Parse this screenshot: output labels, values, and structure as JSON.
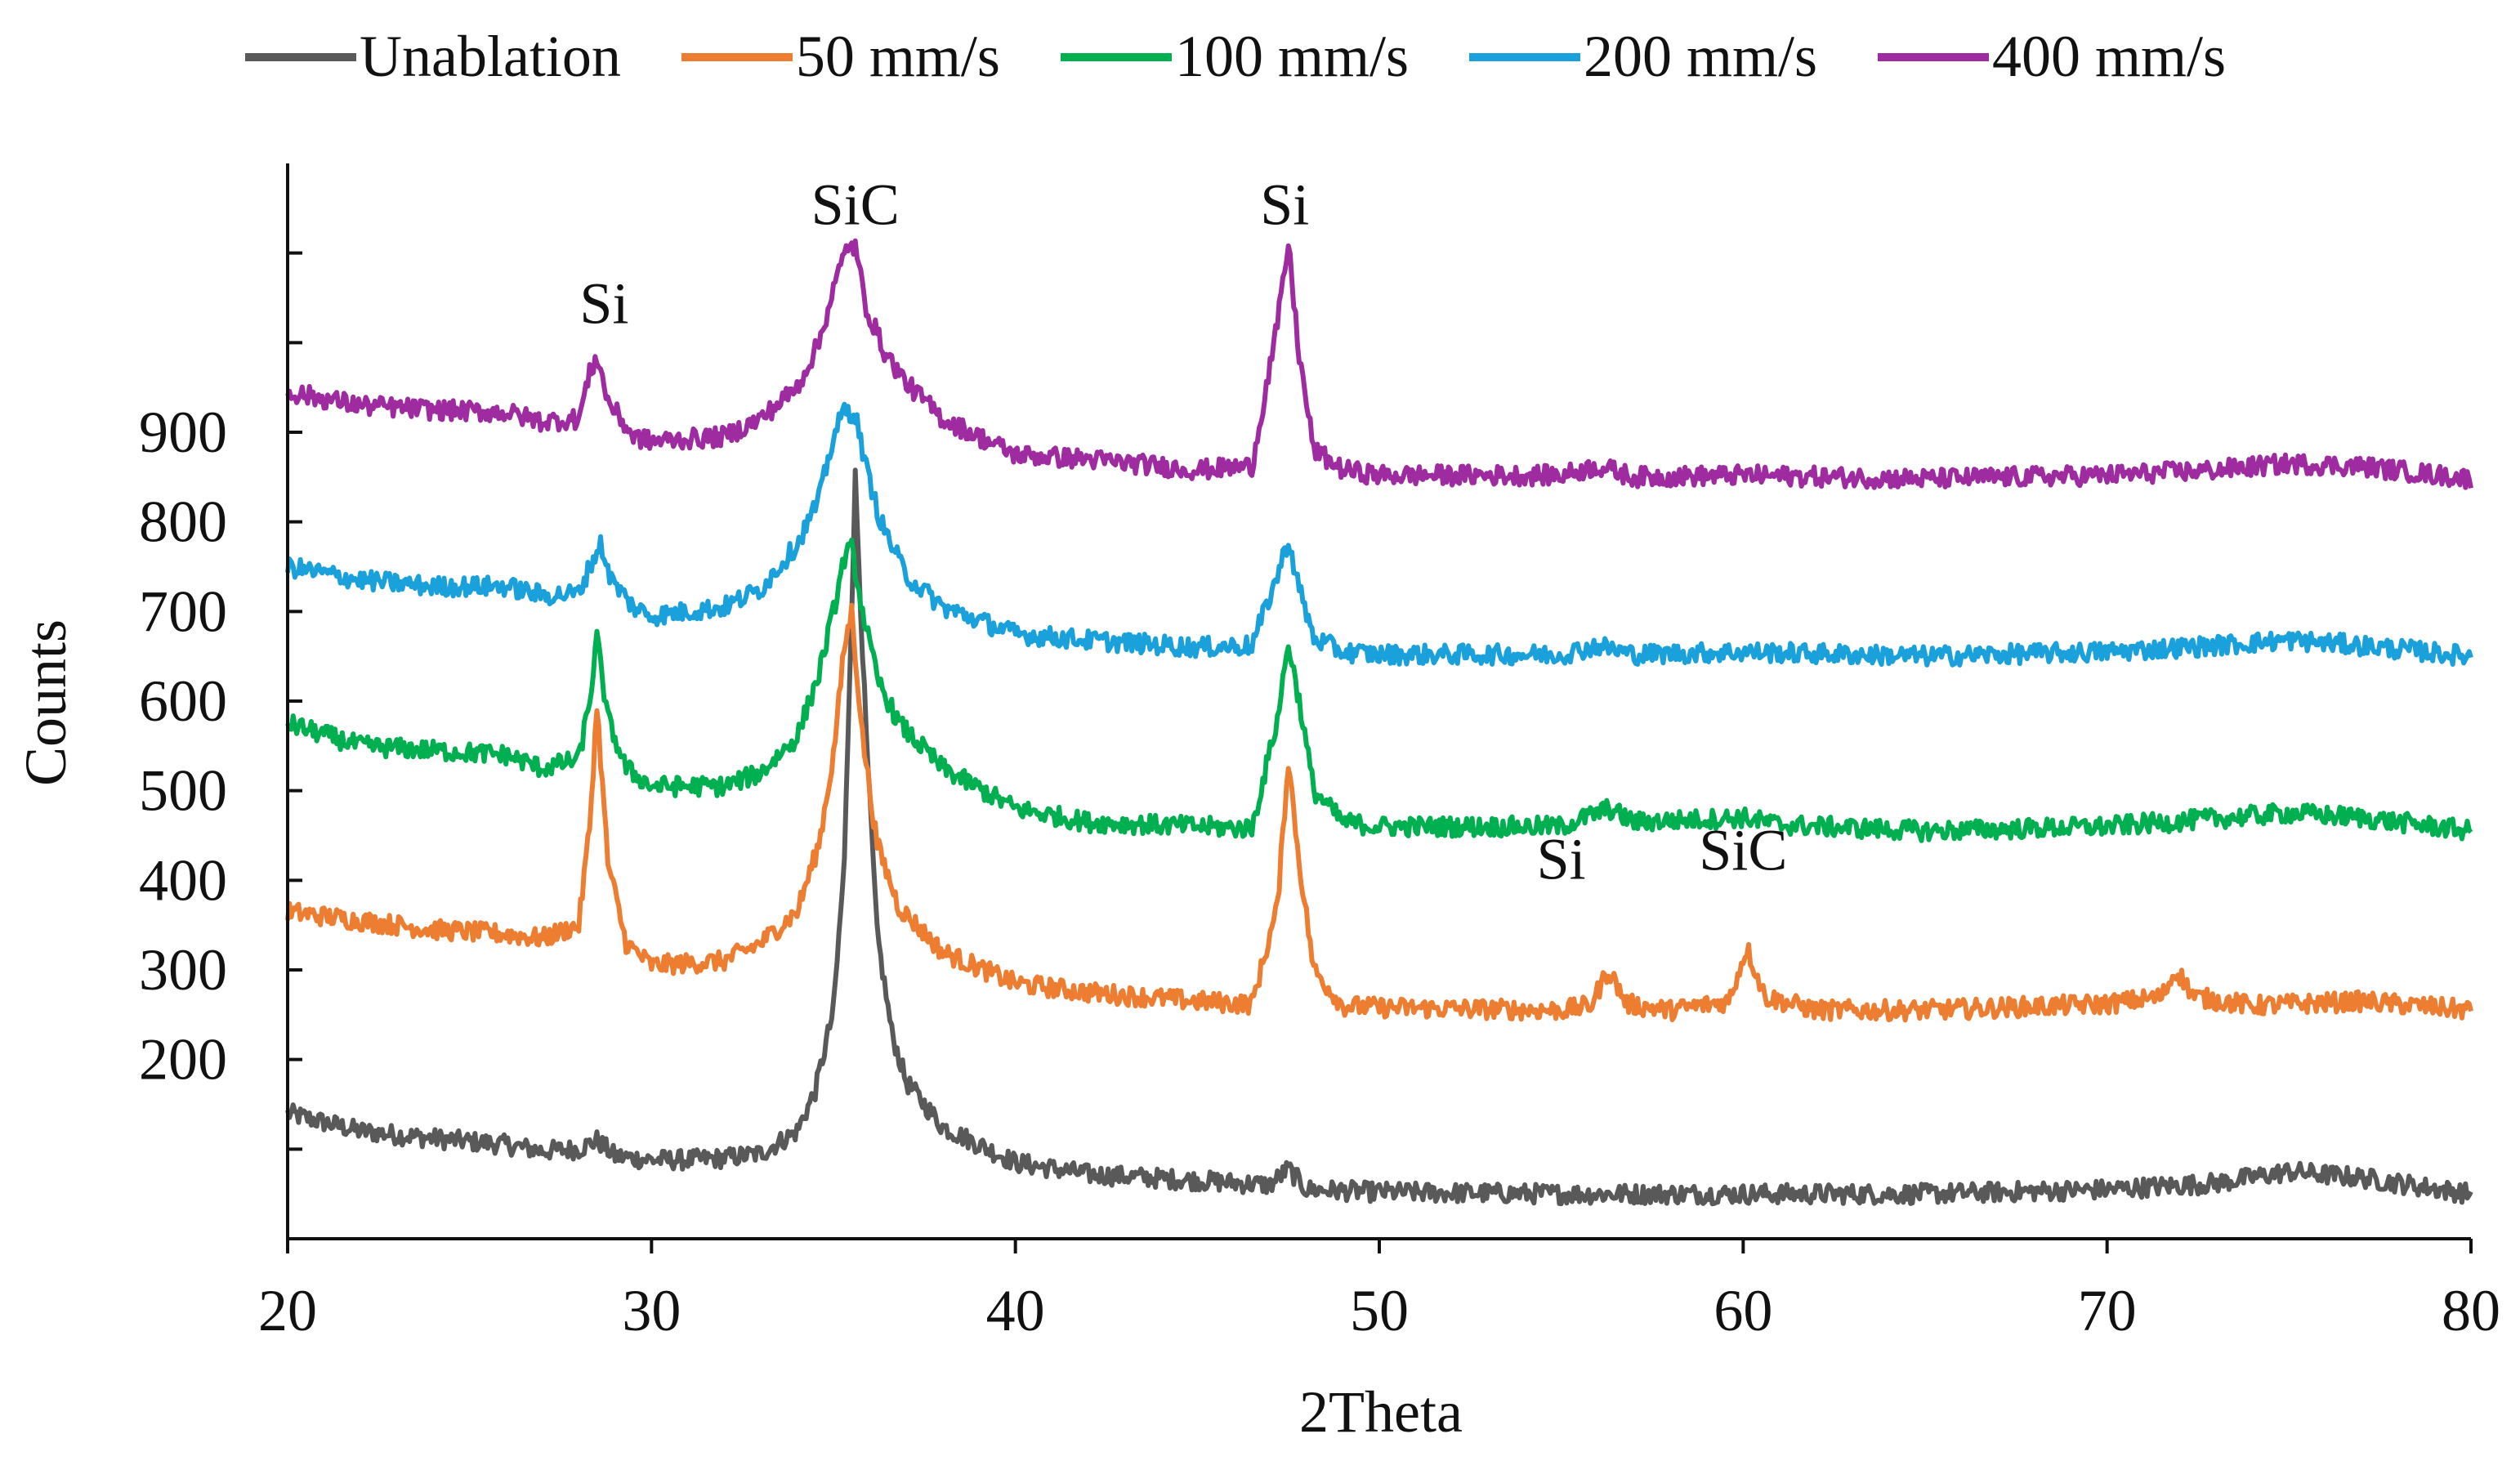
{
  "chart_data": {
    "type": "line",
    "title": "",
    "xlabel": "2Theta",
    "ylabel": "Counts",
    "xlim": [
      20,
      80
    ],
    "ylim": [
      0,
      1200
    ],
    "xticks": [
      20,
      30,
      40,
      50,
      60,
      70,
      80
    ],
    "yticks": [
      200,
      300,
      400,
      500,
      600,
      700,
      800,
      900
    ],
    "grid": false,
    "legend_position": "top",
    "series": [
      {
        "name": "Unablation",
        "color": "#595959",
        "points": [
          [
            20,
            140
          ],
          [
            22,
            120
          ],
          [
            24,
            112
          ],
          [
            26,
            105
          ],
          [
            27,
            98
          ],
          [
            28,
            100
          ],
          [
            28.5,
            110
          ],
          [
            29,
            92
          ],
          [
            30,
            88
          ],
          [
            31,
            88
          ],
          [
            32,
            90
          ],
          [
            33,
            95
          ],
          [
            34,
            120
          ],
          [
            34.5,
            165
          ],
          [
            35,
            255
          ],
          [
            35.3,
            420
          ],
          [
            35.6,
            850
          ],
          [
            35.9,
            560
          ],
          [
            36.2,
            340
          ],
          [
            36.6,
            230
          ],
          [
            37,
            175
          ],
          [
            38,
            125
          ],
          [
            40,
            85
          ],
          [
            42,
            72
          ],
          [
            45,
            65
          ],
          [
            47,
            60
          ],
          [
            47.5,
            78
          ],
          [
            48,
            55
          ],
          [
            50,
            52
          ],
          [
            55,
            50
          ],
          [
            60,
            50
          ],
          [
            65,
            50
          ],
          [
            70,
            55
          ],
          [
            73,
            62
          ],
          [
            75,
            75
          ],
          [
            77,
            68
          ],
          [
            80,
            50
          ]
        ]
      },
      {
        "name": "50 mm/s",
        "color": "#ED7D31",
        "points": [
          [
            20,
            365
          ],
          [
            22,
            355
          ],
          [
            24,
            345
          ],
          [
            26,
            340
          ],
          [
            27,
            335
          ],
          [
            28,
            350
          ],
          [
            28.3,
            460
          ],
          [
            28.5,
            595
          ],
          [
            28.8,
            420
          ],
          [
            29.3,
            330
          ],
          [
            30,
            305
          ],
          [
            32,
            310
          ],
          [
            33,
            330
          ],
          [
            34,
            365
          ],
          [
            34.6,
            440
          ],
          [
            35,
            540
          ],
          [
            35.3,
            660
          ],
          [
            35.5,
            700
          ],
          [
            35.8,
            560
          ],
          [
            36.2,
            440
          ],
          [
            36.8,
            370
          ],
          [
            38,
            320
          ],
          [
            40,
            285
          ],
          [
            42,
            275
          ],
          [
            45,
            265
          ],
          [
            46.5,
            262
          ],
          [
            47.2,
            370
          ],
          [
            47.5,
            535
          ],
          [
            47.8,
            420
          ],
          [
            48.2,
            300
          ],
          [
            49,
            260
          ],
          [
            50,
            258
          ],
          [
            55,
            255
          ],
          [
            55.8,
            260
          ],
          [
            56.3,
            300
          ],
          [
            56.8,
            262
          ],
          [
            58,
            255
          ],
          [
            59.6,
            265
          ],
          [
            60.1,
            325
          ],
          [
            60.6,
            270
          ],
          [
            62,
            255
          ],
          [
            65,
            255
          ],
          [
            70,
            262
          ],
          [
            71.5,
            270
          ],
          [
            71.9,
            300
          ],
          [
            72.4,
            270
          ],
          [
            74,
            260
          ],
          [
            77,
            265
          ],
          [
            80,
            255
          ]
        ]
      },
      {
        "name": "100 mm/s",
        "color": "#00B050",
        "points": [
          [
            20,
            575
          ],
          [
            22,
            550
          ],
          [
            24,
            545
          ],
          [
            26,
            540
          ],
          [
            27,
            525
          ],
          [
            28,
            535
          ],
          [
            28.3,
            600
          ],
          [
            28.5,
            670
          ],
          [
            28.8,
            580
          ],
          [
            29.3,
            525
          ],
          [
            30,
            505
          ],
          [
            32,
            505
          ],
          [
            33,
            520
          ],
          [
            34,
            560
          ],
          [
            34.6,
            630
          ],
          [
            35,
            700
          ],
          [
            35.3,
            760
          ],
          [
            35.5,
            770
          ],
          [
            35.8,
            700
          ],
          [
            36.2,
            625
          ],
          [
            36.8,
            575
          ],
          [
            38,
            525
          ],
          [
            40,
            480
          ],
          [
            42,
            465
          ],
          [
            45,
            460
          ],
          [
            46.5,
            458
          ],
          [
            47.2,
            580
          ],
          [
            47.5,
            665
          ],
          [
            47.8,
            600
          ],
          [
            48.2,
            500
          ],
          [
            49,
            465
          ],
          [
            50,
            460
          ],
          [
            55,
            460
          ],
          [
            56.3,
            480
          ],
          [
            57,
            465
          ],
          [
            60,
            470
          ],
          [
            61,
            462
          ],
          [
            65,
            455
          ],
          [
            70,
            460
          ],
          [
            75,
            475
          ],
          [
            77,
            470
          ],
          [
            80,
            455
          ]
        ]
      },
      {
        "name": "200 mm/s",
        "color": "#1AA1DB",
        "points": [
          [
            20,
            750
          ],
          [
            22,
            735
          ],
          [
            24,
            728
          ],
          [
            26,
            728
          ],
          [
            27,
            718
          ],
          [
            28,
            720
          ],
          [
            28.3,
            750
          ],
          [
            28.6,
            775
          ],
          [
            28.9,
            735
          ],
          [
            29.5,
            705
          ],
          [
            30,
            695
          ],
          [
            32,
            705
          ],
          [
            33,
            725
          ],
          [
            34,
            775
          ],
          [
            34.6,
            825
          ],
          [
            35,
            895
          ],
          [
            35.3,
            925
          ],
          [
            35.6,
            920
          ],
          [
            35.9,
            860
          ],
          [
            36.3,
            800
          ],
          [
            37,
            740
          ],
          [
            38,
            705
          ],
          [
            40,
            675
          ],
          [
            42,
            668
          ],
          [
            45,
            660
          ],
          [
            46.5,
            662
          ],
          [
            47.2,
            740
          ],
          [
            47.5,
            780
          ],
          [
            47.8,
            725
          ],
          [
            48.2,
            670
          ],
          [
            49,
            655
          ],
          [
            50,
            652
          ],
          [
            55,
            652
          ],
          [
            56,
            662
          ],
          [
            57,
            652
          ],
          [
            60,
            655
          ],
          [
            65,
            650
          ],
          [
            70,
            655
          ],
          [
            73,
            662
          ],
          [
            75,
            668
          ],
          [
            77,
            662
          ],
          [
            80,
            650
          ]
        ]
      },
      {
        "name": "400 mm/s",
        "color": "#9E2CA0",
        "points": [
          [
            20,
            945
          ],
          [
            22,
            930
          ],
          [
            24,
            925
          ],
          [
            26,
            922
          ],
          [
            27,
            912
          ],
          [
            28,
            915
          ],
          [
            28.3,
            965
          ],
          [
            28.5,
            985
          ],
          [
            28.8,
            935
          ],
          [
            29.5,
            895
          ],
          [
            30,
            890
          ],
          [
            32,
            895
          ],
          [
            33,
            915
          ],
          [
            34,
            950
          ],
          [
            34.6,
            1000
          ],
          [
            35,
            1060
          ],
          [
            35.4,
            1110
          ],
          [
            35.6,
            1105
          ],
          [
            35.9,
            1040
          ],
          [
            36.4,
            990
          ],
          [
            37,
            955
          ],
          [
            38,
            915
          ],
          [
            40,
            875
          ],
          [
            42,
            870
          ],
          [
            45,
            858
          ],
          [
            46.5,
            862
          ],
          [
            47.2,
            1020
          ],
          [
            47.5,
            1110
          ],
          [
            47.8,
            985
          ],
          [
            48.2,
            880
          ],
          [
            49,
            858
          ],
          [
            50,
            852
          ],
          [
            55,
            852
          ],
          [
            56,
            862
          ],
          [
            57,
            850
          ],
          [
            60,
            852
          ],
          [
            65,
            848
          ],
          [
            70,
            852
          ],
          [
            73,
            858
          ],
          [
            75,
            865
          ],
          [
            77,
            862
          ],
          [
            80,
            848
          ]
        ]
      }
    ],
    "annotations": [
      {
        "text": "Si",
        "x": 28.7,
        "y": 1000
      },
      {
        "text": "SiC",
        "x": 35.6,
        "y": 1110
      },
      {
        "text": "Si",
        "x": 47.4,
        "y": 1110
      },
      {
        "text": "Si",
        "x": 55.0,
        "y": 380
      },
      {
        "text": "SiC",
        "x": 60.0,
        "y": 390
      }
    ]
  }
}
